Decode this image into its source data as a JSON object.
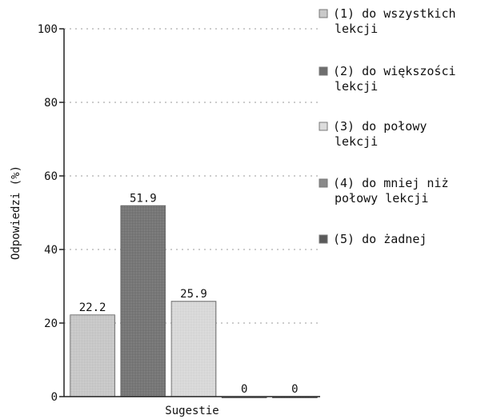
{
  "chart_data": {
    "type": "bar",
    "categories": [
      "Sugestie"
    ],
    "series": [
      {
        "name": "(1) do wszystkich lekcji",
        "legend_lines": [
          "(1) do wszystkich",
          "lekcji"
        ],
        "values": [
          22.2
        ],
        "color": "#c9c9c9"
      },
      {
        "name": "(2) do większości lekcji",
        "legend_lines": [
          "(2) do większości",
          "lekcji"
        ],
        "values": [
          51.9
        ],
        "color": "#6e6e6e"
      },
      {
        "name": "(3) do połowy lekcji",
        "legend_lines": [
          "(3) do połowy",
          "lekcji"
        ],
        "values": [
          25.9
        ],
        "color": "#dcdcdc"
      },
      {
        "name": "(4) do mniej niż połowy lekcji",
        "legend_lines": [
          "(4) do mniej niż",
          "połowy lekcji"
        ],
        "values": [
          0
        ],
        "color": "#8a8a8a"
      },
      {
        "name": "(5) do żadnej",
        "legend_lines": [
          "(5) do żadnej"
        ],
        "values": [
          0
        ],
        "color": "#5a5a5a"
      }
    ],
    "value_labels": [
      "22.2",
      "51.9",
      "25.9",
      "0",
      "0"
    ],
    "xlabel": "Sugestie",
    "ylabel": "Odpowiedzi (%)",
    "ylim": [
      0,
      100
    ],
    "yticks": [
      0,
      20,
      40,
      60,
      80,
      100
    ],
    "grid": "dotted horizontal",
    "legend_position": "right"
  }
}
